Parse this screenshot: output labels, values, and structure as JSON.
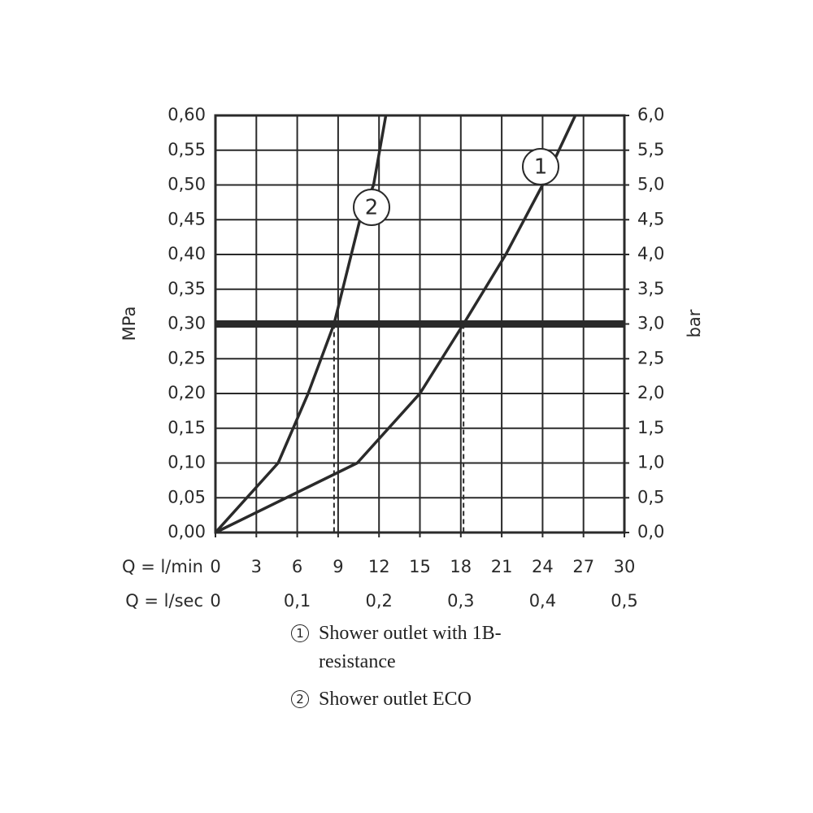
{
  "chart_data": {
    "type": "line",
    "ylabel": "MPa",
    "y2label": "bar",
    "xlabel": "Q = l/min",
    "x2label": "Q = l/sec",
    "xlim": [
      0,
      30
    ],
    "xticks": [
      0,
      3,
      6,
      9,
      12,
      15,
      18,
      21,
      24,
      27,
      30
    ],
    "x2lim": [
      0,
      0.5
    ],
    "x2ticks": [
      0,
      {
        "value": 0.1,
        "label": "0,1"
      },
      {
        "value": 0.2,
        "label": "0,2"
      },
      {
        "value": 0.3,
        "label": "0,3"
      },
      {
        "value": 0.4,
        "label": "0,4"
      },
      {
        "value": 0.5,
        "label": "0,5"
      }
    ],
    "ylim": [
      0,
      0.6
    ],
    "yticks": [
      {
        "value": 0,
        "label": "0,00"
      },
      {
        "value": 0.05,
        "label": "0,05"
      },
      {
        "value": 0.1,
        "label": "0,10"
      },
      {
        "value": 0.15,
        "label": "0,15"
      },
      {
        "value": 0.2,
        "label": "0,20"
      },
      {
        "value": 0.25,
        "label": "0,25"
      },
      {
        "value": 0.3,
        "label": "0,30"
      },
      {
        "value": 0.35,
        "label": "0,35"
      },
      {
        "value": 0.4,
        "label": "0,40"
      },
      {
        "value": 0.45,
        "label": "0,45"
      },
      {
        "value": 0.5,
        "label": "0,50"
      },
      {
        "value": 0.55,
        "label": "0,55"
      },
      {
        "value": 0.6,
        "label": "0,60"
      }
    ],
    "y2lim": [
      0,
      6
    ],
    "y2ticks": [
      {
        "value": 0,
        "label": "0,0"
      },
      {
        "value": 0.5,
        "label": "0,5"
      },
      {
        "value": 1,
        "label": "1,0"
      },
      {
        "value": 1.5,
        "label": "1,5"
      },
      {
        "value": 2,
        "label": "2,0"
      },
      {
        "value": 2.5,
        "label": "2,5"
      },
      {
        "value": 3,
        "label": "3,0"
      },
      {
        "value": 3.5,
        "label": "3,5"
      },
      {
        "value": 4,
        "label": "4,0"
      },
      {
        "value": 4.5,
        "label": "4,5"
      },
      {
        "value": 5,
        "label": "5,0"
      },
      {
        "value": 5.5,
        "label": "5,5"
      },
      {
        "value": 6,
        "label": "6,0"
      }
    ],
    "grid": true,
    "reference_y": 0.3,
    "color": "#2a2a2a",
    "series": [
      {
        "label": "1",
        "name": "Shower outlet with 1B-resistance",
        "x": [
          0,
          10.4,
          15,
          18.2,
          21.3,
          24,
          26.4
        ],
        "values": [
          0,
          0.1,
          0.2,
          0.3,
          0.4,
          0.5,
          0.6
        ]
      },
      {
        "label": "2",
        "name": "Shower outlet ECO",
        "x": [
          0,
          4.6,
          6.8,
          8.7,
          10.6,
          11.6,
          12.5
        ],
        "values": [
          0,
          0.1,
          0.2,
          0.3,
          0.45,
          0.5,
          0.6
        ]
      }
    ]
  }
}
